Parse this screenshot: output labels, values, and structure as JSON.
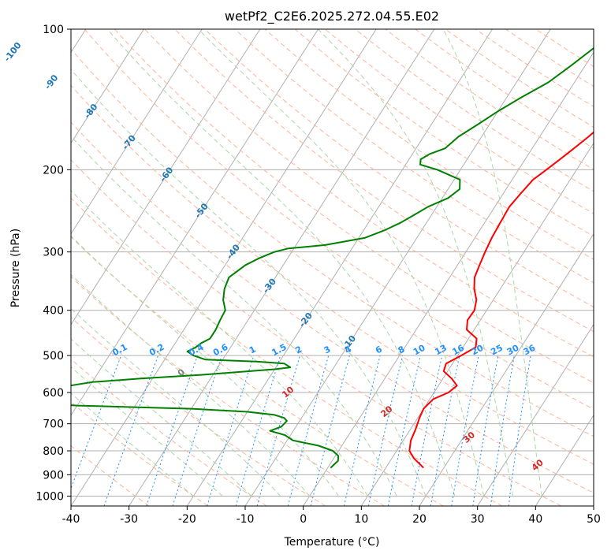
{
  "chart_data": {
    "type": "line",
    "title": "wetPf2_C2E6.2025.272.04.55.E02",
    "xlabel": "Temperature (°C)",
    "ylabel": "Pressure (hPa)",
    "xlim": [
      -40,
      50
    ],
    "ylim": [
      1050,
      100
    ],
    "y_scale": "log",
    "grid": true,
    "x_ticks": [
      "-40",
      "-30",
      "-20",
      "-10",
      "0",
      "10",
      "20",
      "30",
      "40",
      "50"
    ],
    "y_ticks": [
      "100",
      "200",
      "300",
      "400",
      "500",
      "600",
      "700",
      "800",
      "900",
      "1000"
    ],
    "colors": {
      "temperature": "#ff0000",
      "dewpoint": "#008000",
      "isotherm_labels": "#1f77b4",
      "mixing_ratio": "#1e90ff",
      "moist_adiabat_labels": "#d62728",
      "zero_label": "#808080",
      "dry_adiabats": "#ffb399",
      "moist_adiabats": "#a9d6a9",
      "grid": "#b0b0b0"
    },
    "series": [
      {
        "pressure": [
          870,
          830,
          800,
          760,
          720,
          680,
          650,
          620,
          600,
          580,
          560,
          540,
          520,
          500,
          480,
          460,
          440,
          420,
          400,
          380,
          360,
          340,
          320,
          300,
          280,
          260,
          240,
          225,
          210,
          200,
          190,
          180,
          170,
          160,
          150,
          140,
          130,
          120,
          115,
          110,
          105,
          100
        ],
        "temp": [
          16.5,
          13.8,
          12.2,
          11.3,
          10.9,
          10.3,
          10.0,
          10.6,
          12.5,
          13.2,
          11.5,
          9.3,
          8.9,
          10.6,
          12.2,
          11.4,
          8.7,
          7.8,
          7.9,
          7.1,
          5.5,
          4.3,
          3.8,
          3.3,
          2.9,
          2.7,
          2.5,
          3.0,
          3.6,
          4.8,
          6.0,
          7.2,
          8.4,
          9.5,
          11.5,
          13.5,
          14.5,
          14.3,
          14.6,
          15.6,
          16.0,
          16.4
        ]
      },
      {
        "pressure": [
          870,
          840,
          820,
          800,
          780,
          760,
          740,
          725,
          710,
          690,
          680,
          670,
          660,
          650,
          645,
          640,
          630,
          600,
          570,
          560,
          550,
          540,
          535,
          530,
          520,
          515,
          510,
          500,
          490,
          480,
          470,
          460,
          440,
          420,
          400,
          380,
          360,
          340,
          320,
          310,
          300,
          295,
          290,
          280,
          270,
          260,
          250,
          240,
          230,
          220,
          210,
          200,
          195,
          190,
          185,
          180,
          170,
          160,
          150,
          140,
          130,
          120,
          110,
          100
        ],
        "dewp": [
          0.5,
          1.0,
          0.5,
          -1.0,
          -4.0,
          -9.0,
          -11.0,
          -14.0,
          -12.5,
          -12.2,
          -13.0,
          -15.0,
          -20.0,
          -30.0,
          -40.0,
          -50.0,
          -60.0,
          -60.0,
          -50.0,
          -42.0,
          -32.0,
          -24.0,
          -20.0,
          -17.5,
          -19.0,
          -24.0,
          -33.0,
          -35.5,
          -37.0,
          -36.0,
          -35.5,
          -34.5,
          -34.5,
          -34.8,
          -35.0,
          -36.5,
          -37.5,
          -38.0,
          -36.5,
          -35.0,
          -33.0,
          -31.0,
          -25.0,
          -19.0,
          -16.5,
          -14.5,
          -13.0,
          -11.5,
          -9.0,
          -8.0,
          -9.0,
          -14.0,
          -17.5,
          -18.0,
          -17.0,
          -15.0,
          -14.0,
          -12.0,
          -10.0,
          -7.5,
          -4.5,
          -2.5,
          -0.5,
          1.0
        ]
      }
    ],
    "mixing_ratio_labels": [
      "0.1",
      "0.2",
      "0.4",
      "0.6",
      "1",
      "1.5",
      "2",
      "3",
      "4",
      "6",
      "8",
      "10",
      "13",
      "16",
      "20",
      "25",
      "30",
      "36"
    ],
    "isotherm_labels": [
      "-100",
      "-90",
      "-80",
      "-70",
      "-60",
      "-50",
      "-40",
      "-30",
      "-20",
      "-10"
    ],
    "moist_adiabat_labels": [
      "0",
      "10",
      "20",
      "30",
      "40"
    ]
  }
}
